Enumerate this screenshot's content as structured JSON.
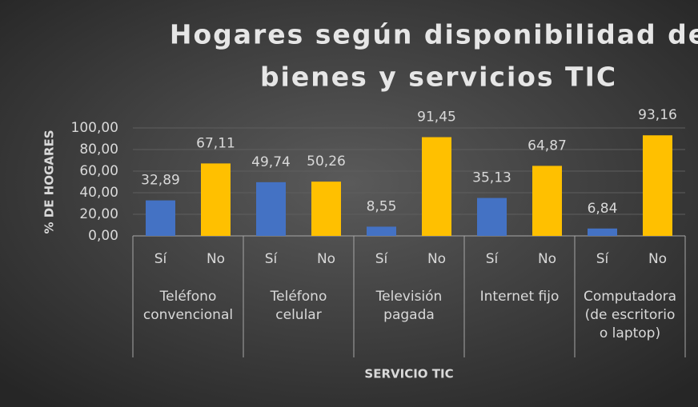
{
  "chart_data": {
    "type": "bar",
    "title": [
      "Hogares según disponibilidad de",
      "bienes y servicios TIC"
    ],
    "x_label": "SERVICIO TIC",
    "y_label": "% DE HOGARES",
    "categories": [
      [
        "Teléfono",
        "convencional"
      ],
      [
        "Teléfono",
        "celular"
      ],
      [
        "Televisión",
        "pagada"
      ],
      [
        "Internet fijo"
      ],
      [
        "Computadora",
        "(de escritorio",
        "o laptop)"
      ]
    ],
    "series": [
      {
        "name": "Sí",
        "color": "#4472c4",
        "values": [
          32.89,
          49.74,
          8.55,
          35.13,
          6.84
        ],
        "value_labels": [
          "32,89",
          "49,74",
          "8,55",
          "35,13",
          "6,84"
        ]
      },
      {
        "name": "No",
        "color": "#ffc000",
        "values": [
          67.11,
          50.26,
          91.45,
          64.87,
          93.16
        ],
        "value_labels": [
          "67,11",
          "50,26",
          "91,45",
          "64,87",
          "93,16"
        ]
      }
    ],
    "ylim": [
      0,
      100
    ],
    "yticks": [
      {
        "value": 0,
        "label": "0,00"
      },
      {
        "value": 20,
        "label": "20,00"
      },
      {
        "value": 40,
        "label": "40,00"
      },
      {
        "value": 60,
        "label": "60,00"
      },
      {
        "value": 80,
        "label": "80,00"
      },
      {
        "value": 100,
        "label": "100,00"
      }
    ],
    "grid": true
  }
}
